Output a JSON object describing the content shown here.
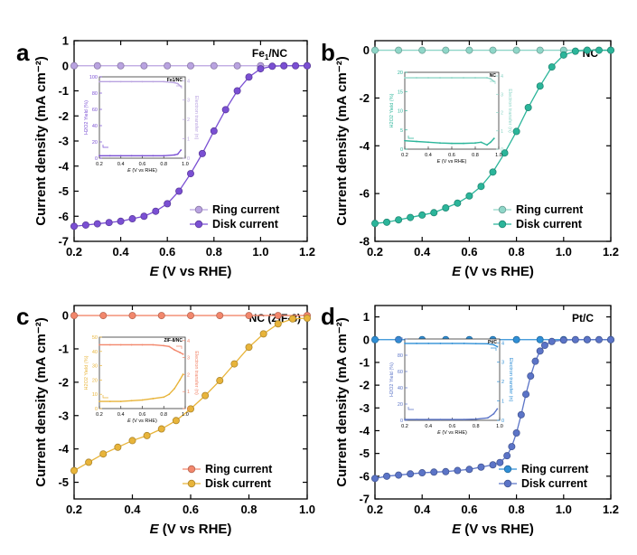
{
  "chart_data": [
    {
      "panel": "a",
      "type": "scatter",
      "annotation": "Fe1/NC",
      "annotation_main": "Fe",
      "annotation_sub": "1",
      "annotation_rest": "/NC",
      "xlabel": "E (V vs RHE)",
      "ylabel": "Current density (mA cm⁻²)",
      "xlim": [
        0.2,
        1.2
      ],
      "ylim": [
        -7,
        1
      ],
      "xticks": [
        "0.2",
        "0.4",
        "0.6",
        "0.8",
        "1.0",
        "1.2"
      ],
      "yticks": [
        "1",
        "0",
        "-1",
        "-2",
        "-3",
        "-4",
        "-5",
        "-6",
        "-7"
      ],
      "legend_position": "bottom-right",
      "colors": {
        "ring": "#b9a3e0",
        "disk": "#7a4fd3"
      },
      "series": [
        {
          "name": "Ring current",
          "role": "ring",
          "x": [
            0.2,
            0.3,
            0.4,
            0.5,
            0.6,
            0.7,
            0.8,
            0.9,
            1.0,
            1.1,
            1.2
          ],
          "y": [
            0,
            0,
            0,
            0,
            0,
            0,
            0,
            0,
            0,
            0,
            0
          ]
        },
        {
          "name": "Disk current",
          "role": "disk",
          "x": [
            0.2,
            0.25,
            0.3,
            0.35,
            0.4,
            0.45,
            0.5,
            0.55,
            0.6,
            0.65,
            0.7,
            0.75,
            0.8,
            0.85,
            0.9,
            0.95,
            1.0,
            1.05,
            1.1,
            1.15,
            1.2
          ],
          "y": [
            -6.4,
            -6.35,
            -6.3,
            -6.25,
            -6.2,
            -6.1,
            -6.0,
            -5.8,
            -5.5,
            -5.0,
            -4.3,
            -3.5,
            -2.6,
            -1.75,
            -1.0,
            -0.45,
            -0.12,
            -0.02,
            0.0,
            0.0,
            0.0
          ]
        }
      ],
      "inset": {
        "label": "Fe1/NC",
        "xlabel": "E (V vs RHE)",
        "ylabel_left": "H2O2 Yield (%)",
        "ylabel_right": "Electron transfer (n)",
        "xticks": [
          "0.2",
          "0.4",
          "0.6",
          "0.8",
          "1.0"
        ],
        "left_ticks": [
          "100",
          "80",
          "60",
          "40",
          "20",
          "0"
        ],
        "right_ticks": [
          "4",
          "3",
          "2",
          "1",
          "0"
        ],
        "xlim": [
          0.2,
          1.0
        ],
        "left_lim": [
          0,
          100
        ],
        "right_lim": [
          0,
          4.2
        ],
        "yield_series": {
          "x": [
            0.2,
            0.3,
            0.4,
            0.5,
            0.6,
            0.7,
            0.8,
            0.9,
            0.93,
            0.96
          ],
          "y": [
            3,
            3,
            3,
            3,
            3,
            3,
            3,
            4,
            5,
            10
          ]
        },
        "n_series": {
          "x": [
            0.2,
            0.3,
            0.4,
            0.5,
            0.6,
            0.7,
            0.8,
            0.9,
            0.93,
            0.96
          ],
          "y": [
            3.95,
            3.95,
            3.95,
            3.95,
            3.95,
            3.95,
            3.95,
            3.9,
            3.85,
            3.7
          ]
        }
      }
    },
    {
      "panel": "b",
      "type": "scatter",
      "annotation": "NC",
      "annotation_main": "NC",
      "annotation_sub": "",
      "annotation_rest": "",
      "xlabel": "E (V vs RHE)",
      "ylabel": "Current density (mA cm⁻²)",
      "xlim": [
        0.2,
        1.2
      ],
      "ylim": [
        -8,
        0.4
      ],
      "xticks": [
        "0.2",
        "0.4",
        "0.6",
        "0.8",
        "1.0",
        "1.2"
      ],
      "yticks": [
        "0",
        "-2",
        "-4",
        "-6",
        "-8"
      ],
      "legend_position": "bottom-right",
      "colors": {
        "ring": "#8fd6c8",
        "disk": "#2bb59a"
      },
      "series": [
        {
          "name": "Ring current",
          "role": "ring",
          "x": [
            0.2,
            0.3,
            0.4,
            0.5,
            0.6,
            0.7,
            0.8,
            0.9,
            1.0,
            1.1,
            1.2
          ],
          "y": [
            0,
            0,
            0,
            0,
            0,
            0,
            0,
            0,
            0,
            0,
            0
          ]
        },
        {
          "name": "Disk current",
          "role": "disk",
          "x": [
            0.2,
            0.25,
            0.3,
            0.35,
            0.4,
            0.45,
            0.5,
            0.55,
            0.6,
            0.65,
            0.7,
            0.75,
            0.8,
            0.85,
            0.9,
            0.95,
            1.0,
            1.05,
            1.1,
            1.15,
            1.2
          ],
          "y": [
            -7.25,
            -7.2,
            -7.1,
            -7.0,
            -6.9,
            -6.8,
            -6.6,
            -6.4,
            -6.1,
            -5.7,
            -5.1,
            -4.3,
            -3.4,
            -2.4,
            -1.5,
            -0.7,
            -0.2,
            -0.04,
            0.0,
            0.0,
            0.0
          ]
        }
      ],
      "inset": {
        "label": "NC",
        "xlabel": "E (V vs RHE)",
        "ylabel_left": "H2O2 Yield (%)",
        "ylabel_right": "Electron transfer (n)",
        "xticks": [
          "0.2",
          "0.4",
          "0.6",
          "0.8",
          "1.0"
        ],
        "left_ticks": [
          "20",
          "15",
          "10",
          "5",
          "0"
        ],
        "right_ticks": [
          "4",
          "3",
          "2",
          "1",
          "0"
        ],
        "xlim": [
          0.2,
          1.0
        ],
        "left_lim": [
          0,
          20
        ],
        "right_lim": [
          0,
          4.2
        ],
        "yield_series": {
          "x": [
            0.2,
            0.3,
            0.4,
            0.5,
            0.6,
            0.7,
            0.8,
            0.85,
            0.9,
            0.93,
            0.96
          ],
          "y": [
            2.2,
            2.0,
            1.8,
            1.6,
            1.5,
            1.5,
            1.6,
            1.8,
            1.1,
            1.8,
            2.8
          ]
        },
        "n_series": {
          "x": [
            0.2,
            0.3,
            0.4,
            0.5,
            0.6,
            0.7,
            0.8,
            0.9,
            0.93,
            0.96
          ],
          "y": [
            3.9,
            3.9,
            3.9,
            3.9,
            3.9,
            3.9,
            3.9,
            3.9,
            3.85,
            3.7
          ]
        }
      }
    },
    {
      "panel": "c",
      "type": "scatter",
      "annotation": "NC (ZIF-8)",
      "annotation_main": "NC (ZIF-8)",
      "annotation_sub": "",
      "annotation_rest": "",
      "xlabel": "E (V vs RHE)",
      "ylabel": "Current density (mA cm⁻²)",
      "xlim": [
        0.2,
        1.0
      ],
      "ylim": [
        -5.5,
        0.3
      ],
      "xticks": [
        "0.2",
        "0.4",
        "0.6",
        "0.8",
        "1.0"
      ],
      "yticks": [
        "0",
        "-1",
        "-2",
        "-3",
        "-4",
        "-5"
      ],
      "legend_position": "bottom-right",
      "colors": {
        "ring": "#f2876c",
        "disk": "#e8b43a"
      },
      "series": [
        {
          "name": "Ring current",
          "role": "ring",
          "x": [
            0.2,
            0.3,
            0.4,
            0.5,
            0.6,
            0.7,
            0.8,
            0.9,
            1.0
          ],
          "y": [
            0,
            0,
            0,
            0,
            0,
            0,
            0,
            0,
            0
          ]
        },
        {
          "name": "Disk current",
          "role": "disk",
          "x": [
            0.2,
            0.25,
            0.3,
            0.35,
            0.4,
            0.45,
            0.5,
            0.55,
            0.6,
            0.65,
            0.7,
            0.75,
            0.8,
            0.85,
            0.9,
            0.95,
            1.0
          ],
          "y": [
            -4.65,
            -4.4,
            -4.15,
            -3.95,
            -3.75,
            -3.6,
            -3.4,
            -3.15,
            -2.8,
            -2.4,
            -1.95,
            -1.45,
            -0.95,
            -0.55,
            -0.25,
            -0.1,
            -0.08
          ]
        }
      ],
      "inset": {
        "label": "ZIF-8/NC",
        "xlabel": "E (V vs RHE)",
        "ylabel_left": "H2O2 Yield (%)",
        "ylabel_right": "Electron transfer (n)",
        "xticks": [
          "0.2",
          "0.4",
          "0.6",
          "0.8",
          "1.0"
        ],
        "left_ticks": [
          "50",
          "40",
          "30",
          "20",
          "10",
          "0"
        ],
        "right_ticks": [
          "4",
          "3",
          "2",
          "1",
          "0"
        ],
        "xlim": [
          0.2,
          1.0
        ],
        "left_lim": [
          0,
          50
        ],
        "right_lim": [
          0,
          4.2
        ],
        "yield_series": {
          "x": [
            0.2,
            0.3,
            0.4,
            0.5,
            0.6,
            0.7,
            0.8,
            0.85,
            0.9,
            0.95,
            0.98
          ],
          "y": [
            5,
            5,
            5,
            5.5,
            6,
            7,
            8,
            10,
            14,
            20,
            24
          ]
        },
        "n_series": {
          "x": [
            0.2,
            0.3,
            0.4,
            0.5,
            0.6,
            0.7,
            0.8,
            0.85,
            0.9,
            0.95,
            0.98
          ],
          "y": [
            3.75,
            3.75,
            3.75,
            3.75,
            3.75,
            3.75,
            3.7,
            3.65,
            3.45,
            3.3,
            3.2
          ]
        }
      }
    },
    {
      "panel": "d",
      "type": "scatter",
      "annotation": "Pt/C",
      "annotation_main": "Pt/C",
      "annotation_sub": "",
      "annotation_rest": "",
      "xlabel": "E (V vs RHE)",
      "ylabel": "Current density (mA cm⁻²)",
      "xlim": [
        0.2,
        1.2
      ],
      "ylim": [
        -7,
        1.5
      ],
      "xticks": [
        "0.2",
        "0.4",
        "0.6",
        "0.8",
        "1.0",
        "1.2"
      ],
      "yticks": [
        "1",
        "0",
        "-1",
        "-2",
        "-3",
        "-4",
        "-5",
        "-6",
        "-7"
      ],
      "legend_position": "bottom-right",
      "colors": {
        "ring": "#2f8fd6",
        "disk": "#5b74c7"
      },
      "series": [
        {
          "name": "Ring current",
          "role": "ring",
          "x": [
            0.2,
            0.3,
            0.4,
            0.5,
            0.6,
            0.7,
            0.8,
            0.9,
            1.0,
            1.1,
            1.2
          ],
          "y": [
            0,
            0,
            0,
            0,
            0,
            0,
            0,
            0,
            0,
            0,
            0
          ]
        },
        {
          "name": "Disk current",
          "role": "disk",
          "x": [
            0.2,
            0.25,
            0.3,
            0.35,
            0.4,
            0.45,
            0.5,
            0.55,
            0.6,
            0.65,
            0.7,
            0.73,
            0.76,
            0.78,
            0.8,
            0.82,
            0.84,
            0.86,
            0.88,
            0.9,
            0.92,
            0.95,
            1.0,
            1.05,
            1.1,
            1.15,
            1.2
          ],
          "y": [
            -6.1,
            -6.0,
            -5.95,
            -5.9,
            -5.85,
            -5.82,
            -5.8,
            -5.75,
            -5.7,
            -5.6,
            -5.5,
            -5.4,
            -5.1,
            -4.7,
            -4.1,
            -3.3,
            -2.4,
            -1.6,
            -0.95,
            -0.5,
            -0.25,
            -0.08,
            -0.02,
            0.0,
            0.0,
            0.0,
            0.0
          ]
        }
      ],
      "inset": {
        "label": "Pt/C",
        "xlabel": "E (V vs RHE)",
        "ylabel_left": "H2O2 Yield (%)",
        "ylabel_right": "Electron transfer (n)",
        "xticks": [
          "0.2",
          "0.4",
          "0.6",
          "0.8",
          "1.0"
        ],
        "left_ticks": [
          "100",
          "80",
          "60",
          "40",
          "20",
          "0"
        ],
        "right_ticks": [
          "4",
          "3",
          "2",
          "1",
          "0"
        ],
        "xlim": [
          0.2,
          1.0
        ],
        "left_lim": [
          0,
          100
        ],
        "right_lim": [
          0,
          4.2
        ],
        "yield_series": {
          "x": [
            0.2,
            0.3,
            0.4,
            0.5,
            0.6,
            0.7,
            0.8,
            0.9,
            0.95,
            0.98
          ],
          "y": [
            1,
            1,
            1,
            1,
            1,
            1,
            1.5,
            3,
            8,
            14
          ]
        },
        "n_series": {
          "x": [
            0.2,
            0.3,
            0.4,
            0.5,
            0.6,
            0.7,
            0.8,
            0.9,
            0.95,
            0.98
          ],
          "y": [
            3.97,
            3.97,
            3.97,
            3.97,
            3.97,
            3.97,
            3.96,
            3.95,
            3.9,
            3.8
          ]
        }
      }
    }
  ]
}
